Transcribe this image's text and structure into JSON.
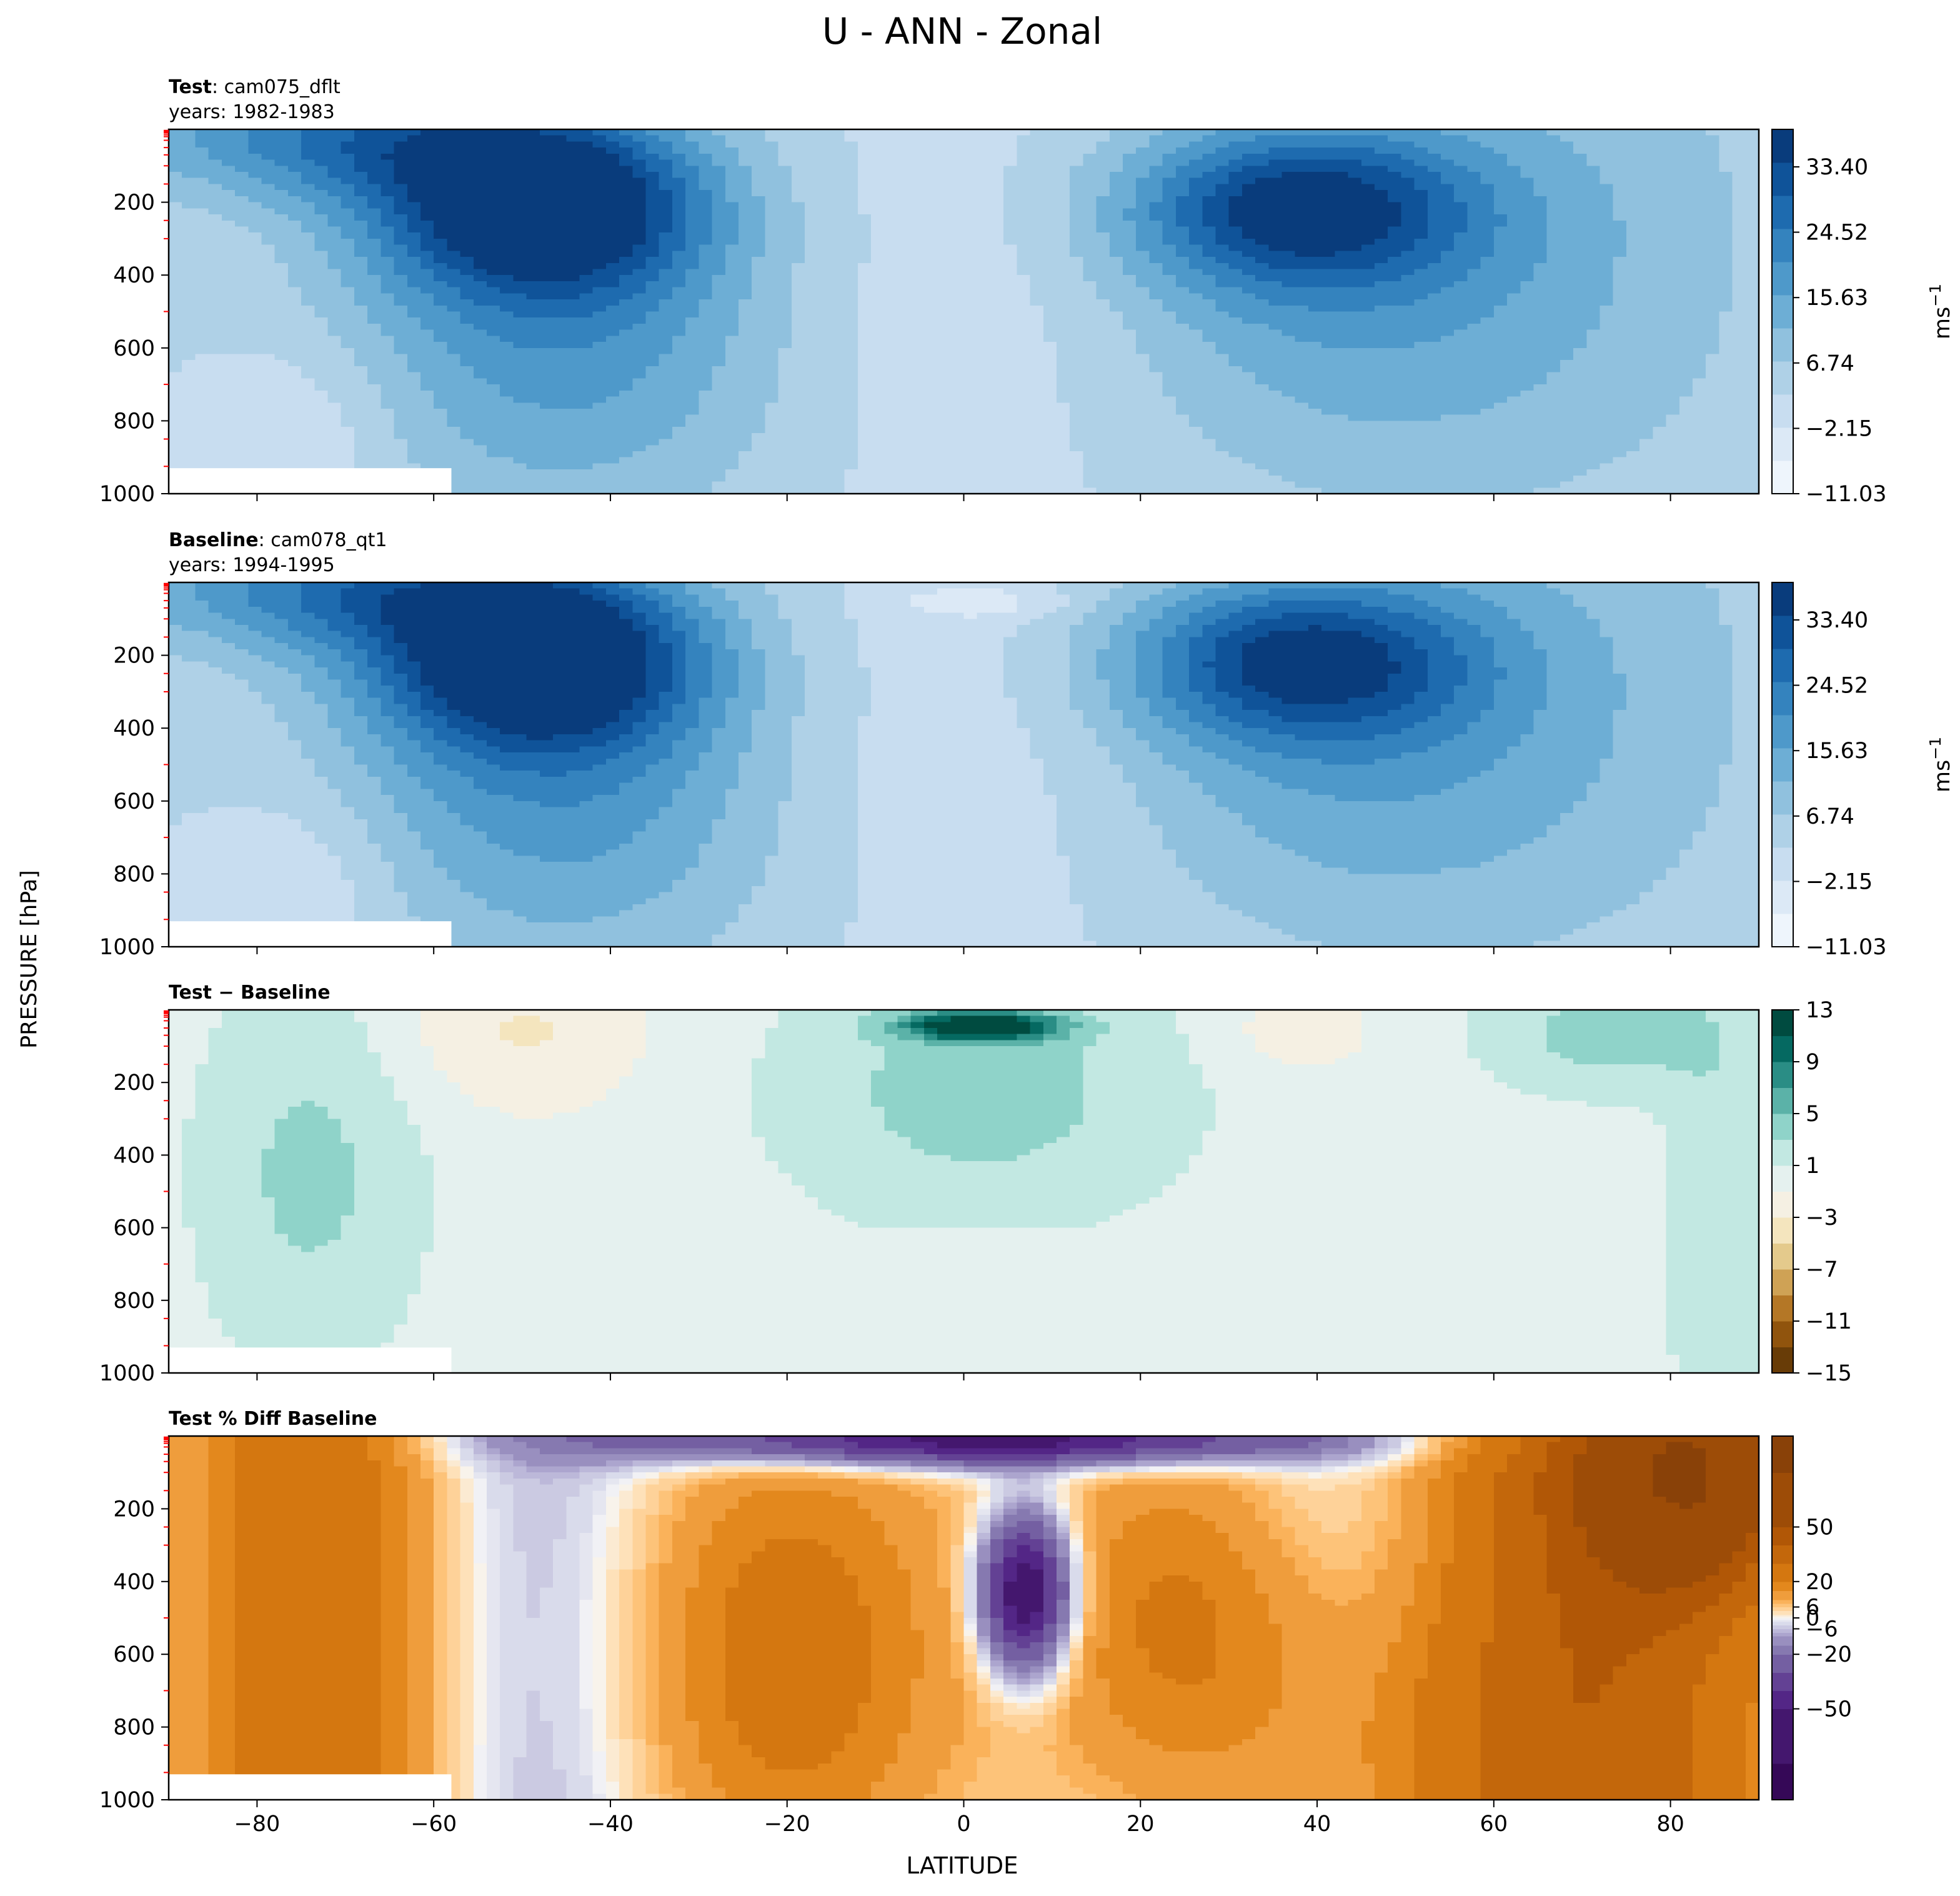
{
  "figure": {
    "title": "U - ANN - Zonal",
    "ylabel": "PRESSURE [hPa]",
    "xlabel": "LATITUDE"
  },
  "colors": {
    "blues": [
      "#f7fbff",
      "#e3eef9",
      "#cfe1f2",
      "#b5d4e9",
      "#93c3df",
      "#6daed5",
      "#4b97c9",
      "#2f7ebc",
      "#1864aa",
      "#0a4a90",
      "#08306b"
    ],
    "brbg_diff": [
      "#543005",
      "#8c510a",
      "#bf812d",
      "#dfc27d",
      "#f6e8c3",
      "#f5f5f5",
      "#c7eae5",
      "#80cdc1",
      "#35978f",
      "#01665e",
      "#003c30"
    ],
    "puor_pct": [
      "#2d004b",
      "#542788",
      "#8073ac",
      "#b2abd2",
      "#d8daeb",
      "#f7f7f7",
      "#fee0b6",
      "#fdb863",
      "#e08214",
      "#b35806",
      "#7f3b08"
    ],
    "minor_tick": "#ff0000"
  },
  "chart_data": [
    {
      "type": "heatmap",
      "id": "test",
      "title_bold": "Test",
      "title_rest": ": cam075_dflt",
      "subtitle": "years: 1982-1983",
      "field": "test",
      "xlim": [
        -90,
        90
      ],
      "ylim": [
        1000,
        0
      ],
      "yticks": [
        200,
        400,
        600,
        800,
        1000
      ],
      "colorbar": {
        "label": "ms",
        "label_sup": "−1",
        "range": [
          -11.03,
          38.5
        ],
        "ticks": [
          -11.03,
          -2.15,
          6.74,
          15.63,
          24.52,
          33.4
        ],
        "tick_labels": [
          "−11.03",
          "−2.15",
          "6.74",
          "15.63",
          "24.52",
          "33.40"
        ],
        "nlevels": 11,
        "cmap": "blues"
      }
    },
    {
      "type": "heatmap",
      "id": "baseline",
      "title_bold": "Baseline",
      "title_rest": ": cam078_qt1",
      "subtitle": "years: 1994-1995",
      "field": "base",
      "xlim": [
        -90,
        90
      ],
      "ylim": [
        1000,
        0
      ],
      "yticks": [
        200,
        400,
        600,
        800,
        1000
      ],
      "colorbar": {
        "label": "ms",
        "label_sup": "−1",
        "range": [
          -11.03,
          38.5
        ],
        "ticks": [
          -11.03,
          -2.15,
          6.74,
          15.63,
          24.52,
          33.4
        ],
        "tick_labels": [
          "−11.03",
          "−2.15",
          "6.74",
          "15.63",
          "24.52",
          "33.40"
        ],
        "nlevels": 11,
        "cmap": "blues"
      }
    },
    {
      "type": "heatmap",
      "id": "diff",
      "title_bold": "Test − Baseline",
      "title_rest": "",
      "subtitle": "",
      "field": "diff",
      "xlim": [
        -90,
        90
      ],
      "ylim": [
        1000,
        0
      ],
      "yticks": [
        200,
        400,
        600,
        800,
        1000
      ],
      "colorbar": {
        "label": "",
        "label_sup": "",
        "range": [
          -15,
          13
        ],
        "ticks": [
          -15,
          -11,
          -7,
          -3,
          1,
          5,
          9,
          13
        ],
        "tick_labels": [
          "−15",
          "−11",
          "−7",
          "−3",
          "1",
          "5",
          "9",
          "13"
        ],
        "levels": [
          -15,
          -13,
          -11,
          -9,
          -7,
          -5,
          -3,
          -1,
          1,
          3,
          5,
          7,
          9,
          11,
          13
        ],
        "cmap": "brbg_diff"
      }
    },
    {
      "type": "heatmap",
      "id": "pctdiff",
      "title_bold": "Test % Diff Baseline",
      "title_rest": "",
      "subtitle": "",
      "field": "pct",
      "xlim": [
        -90,
        90
      ],
      "ylim": [
        1000,
        0
      ],
      "yticks": [
        200,
        400,
        600,
        800,
        1000
      ],
      "xticks": [
        -80,
        -60,
        -40,
        -20,
        0,
        20,
        40,
        60,
        80
      ],
      "xtick_labels": [
        "−80",
        "−60",
        "−40",
        "−20",
        "0",
        "20",
        "40",
        "60",
        "80"
      ],
      "colorbar": {
        "label": "",
        "label_sup": "",
        "range": [
          -100,
          100
        ],
        "ticks": [
          -50,
          -20,
          -6,
          0,
          6,
          20,
          50
        ],
        "tick_labels": [
          "−50",
          "−20",
          "−6",
          "0",
          "6",
          "20",
          "50"
        ],
        "levels": [
          -100,
          -80,
          -50,
          -40,
          -30,
          -20,
          -15,
          -10,
          -8,
          -6,
          -4,
          -2,
          -1,
          0,
          1,
          2,
          4,
          6,
          8,
          10,
          15,
          20,
          30,
          40,
          50,
          80,
          100
        ],
        "cmap": "puor_pct"
      }
    }
  ]
}
